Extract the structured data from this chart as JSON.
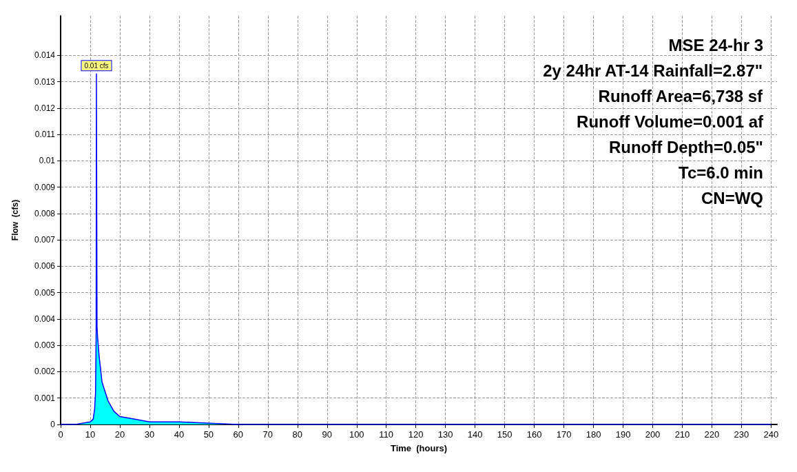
{
  "chart_data": {
    "type": "area",
    "xlabel": "Time  (hours)",
    "ylabel": "Flow  (cfs)",
    "x": [
      0,
      5,
      10,
      11,
      11.5,
      11.8,
      12,
      12.1,
      12.2,
      12.3,
      12.5,
      13,
      14,
      16,
      18,
      20,
      25,
      30,
      40,
      60,
      100,
      240
    ],
    "series": [
      {
        "color": "#00ffff",
        "values": [
          0,
          0,
          0.0001,
          0.0002,
          0.0006,
          0.0012,
          0.0035,
          0.0133,
          0.0133,
          0.0037,
          0.0033,
          0.0026,
          0.0016,
          0.0009,
          0.0005,
          0.0003,
          0.0002,
          0.0001,
          0.0001,
          0,
          0,
          0
        ]
      }
    ],
    "xlim": [
      0,
      242
    ],
    "ylim": [
      0,
      0.0155
    ],
    "xticks": [
      0,
      10,
      20,
      30,
      40,
      50,
      60,
      70,
      80,
      90,
      100,
      110,
      120,
      130,
      140,
      150,
      160,
      170,
      180,
      190,
      200,
      210,
      220,
      230,
      240
    ],
    "yticks": [
      0,
      0.001,
      0.002,
      0.003,
      0.004,
      0.005,
      0.006,
      0.007,
      0.008,
      0.009,
      0.01,
      0.011,
      0.012,
      0.013,
      0.014
    ],
    "grid": true,
    "annotations": [
      {
        "text": "0.01 cfs",
        "x": 12.1,
        "y": 0.0133
      },
      "MSE 24-hr 3",
      "2y 24hr AT-14 Rainfall=2.87\"",
      "Runoff Area=6,738 sf",
      "Runoff Volume=0.001 af",
      "Runoff Depth=0.05\"",
      "Tc=6.0 min",
      "CN=WQ"
    ]
  }
}
